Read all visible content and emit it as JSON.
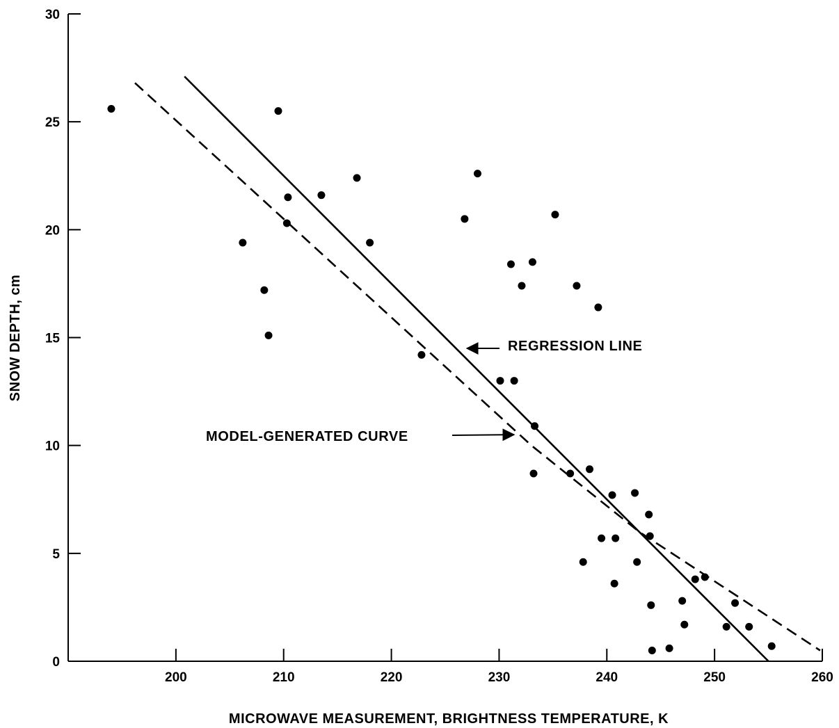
{
  "chart_data": {
    "type": "scatter",
    "title": "",
    "xlabel": "MICROWAVE MEASUREMENT, BRIGHTNESS TEMPERATURE, K",
    "ylabel": "SNOW DEPTH, cm",
    "xlim": [
      190,
      260
    ],
    "ylim": [
      0,
      30
    ],
    "xticks": [
      200,
      210,
      220,
      230,
      240,
      250,
      260
    ],
    "yticks": [
      0,
      5,
      10,
      15,
      20,
      25,
      30
    ],
    "grid": false,
    "series": [
      {
        "kind": "points",
        "points": [
          [
            194.0,
            25.6
          ],
          [
            206.2,
            19.4
          ],
          [
            208.2,
            17.2
          ],
          [
            208.6,
            15.1
          ],
          [
            209.5,
            25.5
          ],
          [
            210.3,
            20.3
          ],
          [
            210.4,
            21.5
          ],
          [
            213.5,
            21.6
          ],
          [
            216.8,
            22.4
          ],
          [
            218.0,
            19.4
          ],
          [
            222.8,
            14.2
          ],
          [
            226.8,
            20.5
          ],
          [
            228.0,
            22.6
          ],
          [
            230.1,
            13.0
          ],
          [
            231.1,
            18.4
          ],
          [
            231.4,
            13.0
          ],
          [
            232.1,
            17.4
          ],
          [
            233.1,
            18.5
          ],
          [
            233.2,
            8.7
          ],
          [
            233.3,
            10.9
          ],
          [
            235.2,
            20.7
          ],
          [
            236.6,
            8.7
          ],
          [
            237.2,
            17.4
          ],
          [
            238.4,
            8.9
          ],
          [
            239.2,
            16.4
          ],
          [
            239.5,
            5.7
          ],
          [
            237.8,
            4.6
          ],
          [
            240.5,
            7.7
          ],
          [
            240.8,
            5.7
          ],
          [
            240.7,
            3.6
          ],
          [
            242.6,
            7.8
          ],
          [
            242.8,
            4.6
          ],
          [
            243.9,
            6.8
          ],
          [
            244.0,
            5.8
          ],
          [
            244.1,
            2.6
          ],
          [
            244.2,
            0.5
          ],
          [
            245.8,
            0.6
          ],
          [
            247.0,
            2.8
          ],
          [
            247.2,
            1.7
          ],
          [
            248.2,
            3.8
          ],
          [
            249.1,
            3.9
          ],
          [
            251.1,
            1.6
          ],
          [
            251.9,
            2.7
          ],
          [
            253.2,
            1.6
          ],
          [
            255.3,
            0.7
          ]
        ]
      },
      {
        "kind": "regression",
        "points": [
          [
            200.8,
            27.1
          ],
          [
            255.0,
            0
          ]
        ]
      },
      {
        "kind": "model",
        "points": [
          [
            196.2,
            26.8
          ],
          [
            233.0,
            10.0
          ],
          [
            243.0,
            6.0
          ],
          [
            259.8,
            0.5
          ]
        ]
      }
    ],
    "annotations": [
      {
        "text": "REGRESSION LINE",
        "target": [
          226.9,
          14.5
        ]
      },
      {
        "text": "MODEL-GENERATED CURVE",
        "target": [
          231.5,
          10.5
        ]
      }
    ]
  }
}
